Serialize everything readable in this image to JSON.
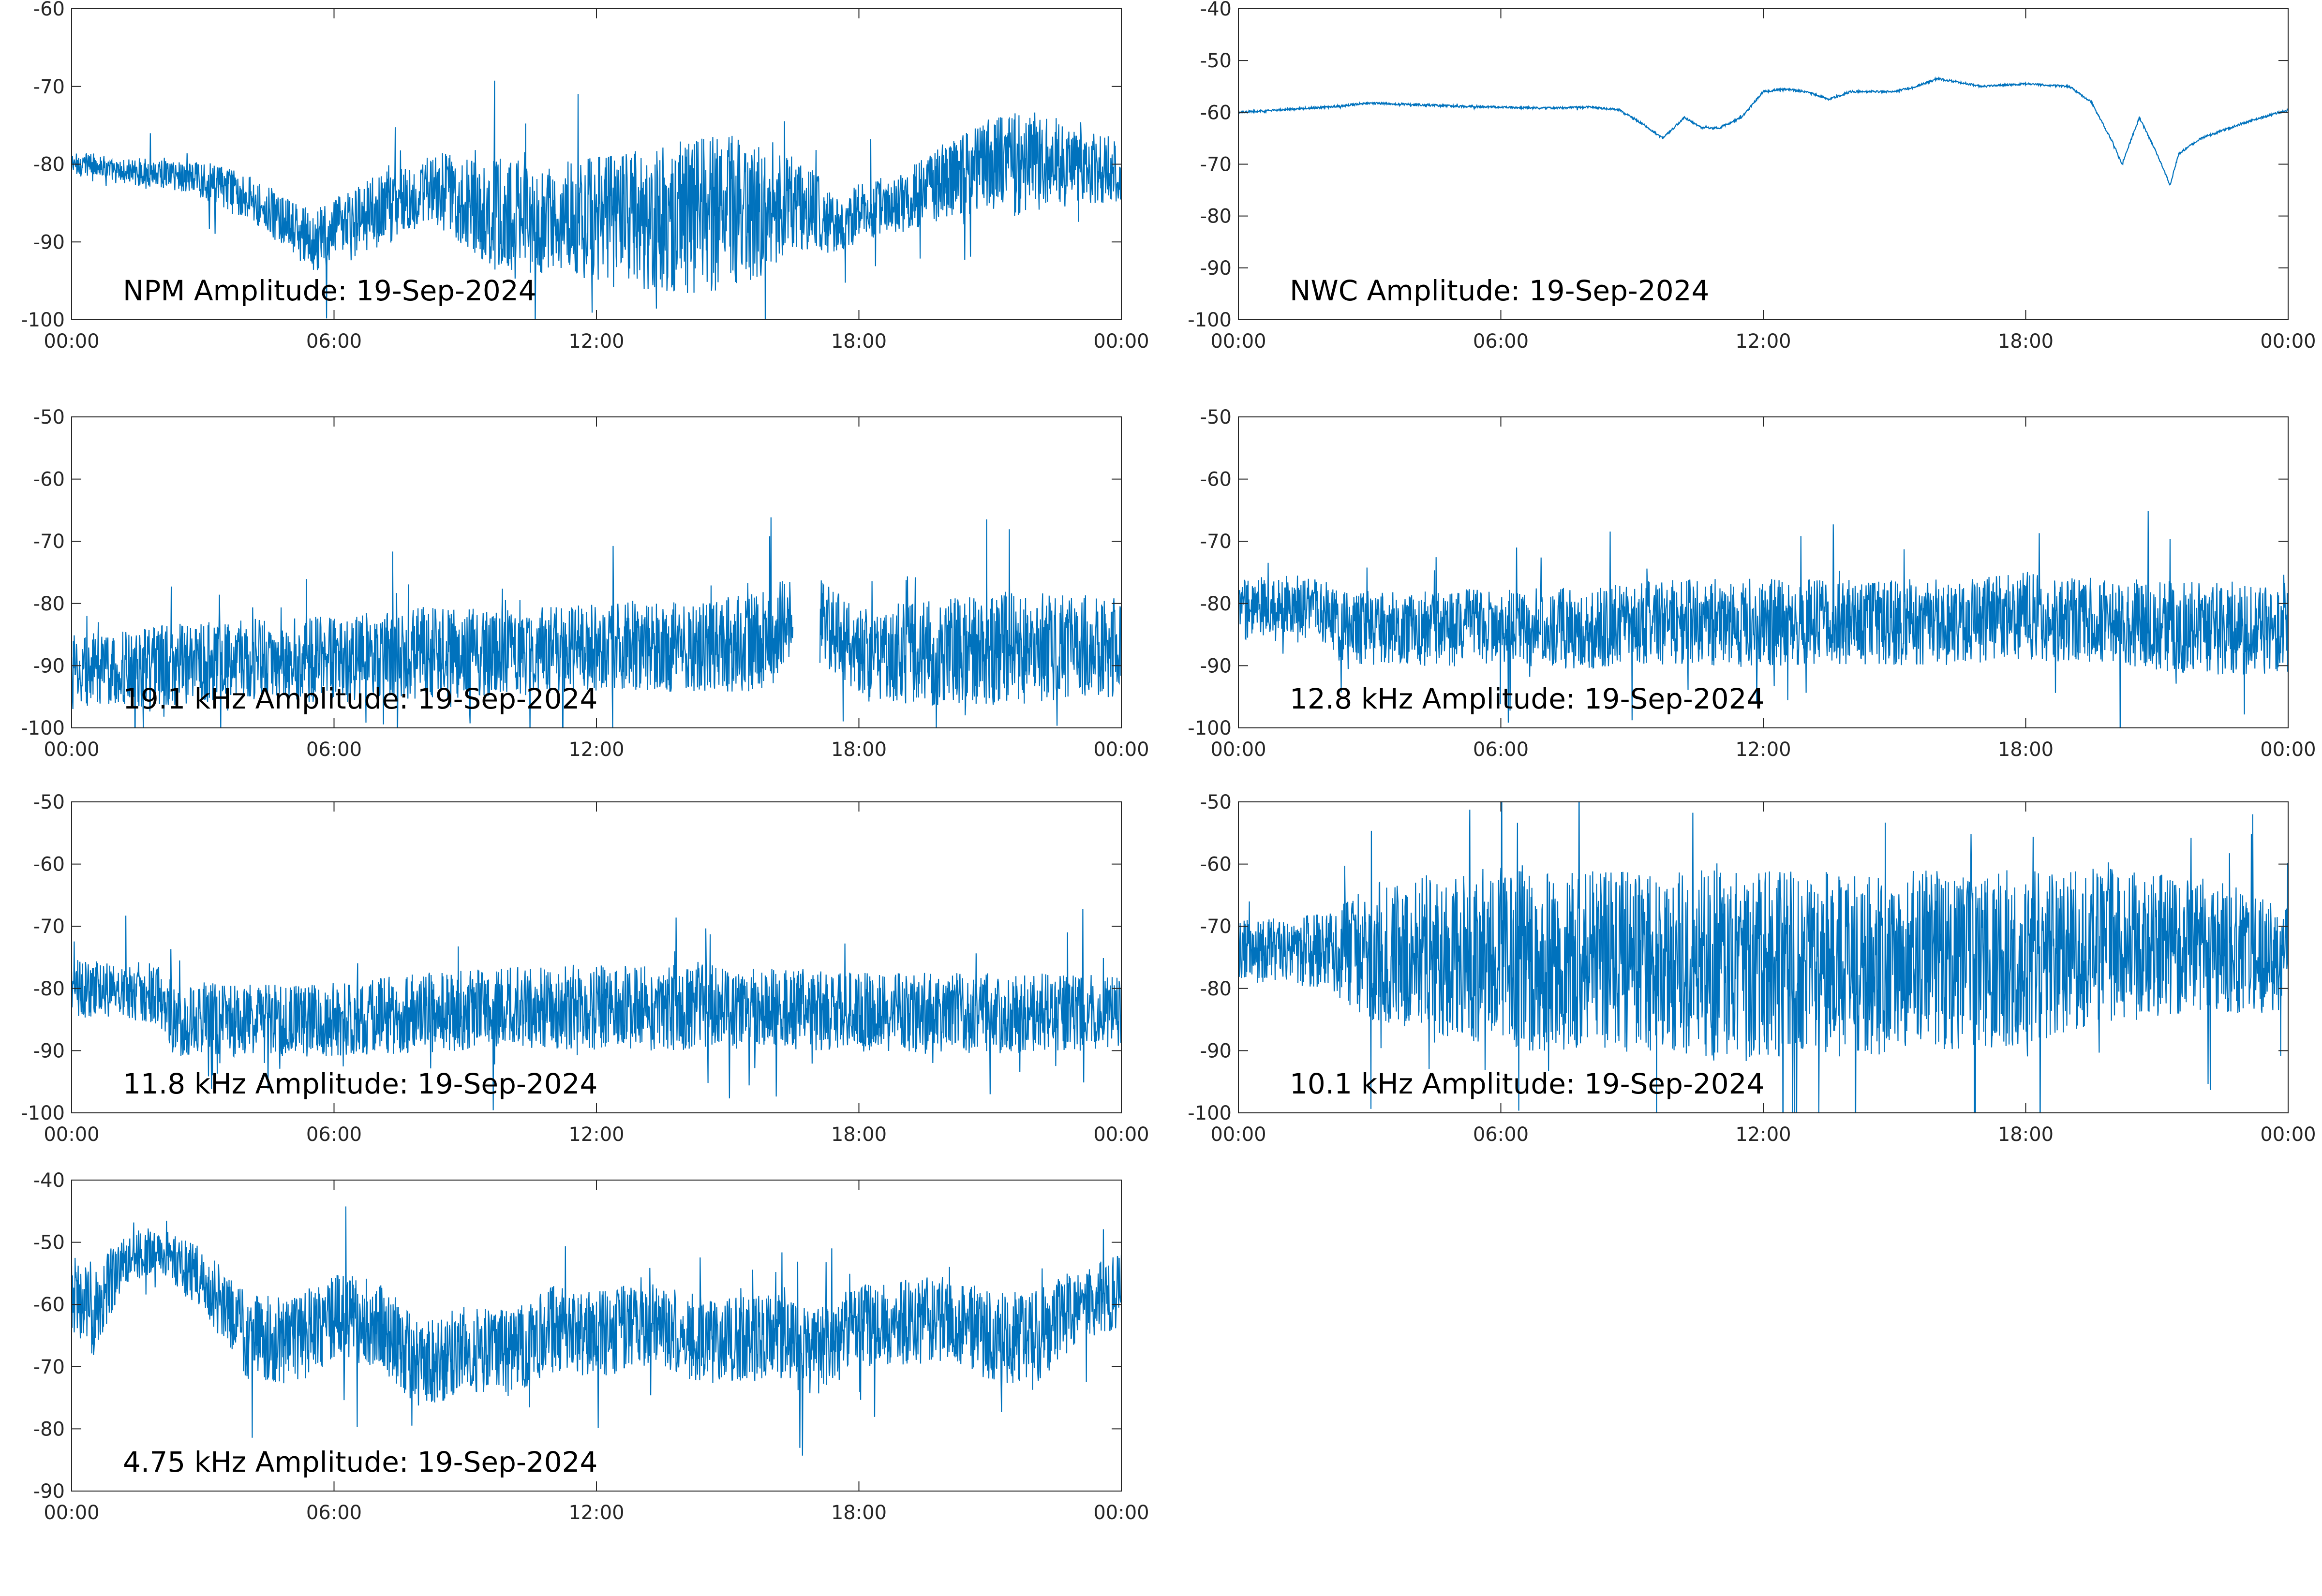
{
  "figure": {
    "background": "#ffffff",
    "line_color": "#0072BD",
    "axis_color": "#262626"
  },
  "chart_data": [
    {
      "type": "line",
      "title": "NPM Amplitude: 19-Sep-2024",
      "xlabel": "",
      "ylabel": "",
      "x_ticks": [
        "00:00",
        "06:00",
        "12:00",
        "18:00",
        "00:00"
      ],
      "xlim": [
        0,
        24
      ],
      "ylim": [
        -100,
        -60
      ],
      "y_ticks": [
        -60,
        -70,
        -80,
        -90,
        -100
      ],
      "grid": false,
      "series": [
        {
          "x": [
            0,
            0.6,
            1,
            2,
            3,
            4,
            5,
            5.5,
            6,
            7,
            8,
            8.5,
            9,
            10,
            11,
            12,
            13,
            14,
            15,
            16,
            16.5,
            17,
            17.5,
            18,
            19,
            20,
            21,
            22,
            23,
            24
          ],
          "y": [
            -80,
            -80,
            -81,
            -81,
            -82,
            -84,
            -88,
            -90,
            -89,
            -86,
            -84,
            -83,
            -85,
            -87,
            -87,
            -87,
            -87,
            -87,
            -86,
            -86,
            -85,
            -86,
            -88,
            -86,
            -85,
            -82,
            -80,
            -80,
            -80,
            -81
          ],
          "spread": [
            3,
            3,
            3,
            4,
            5,
            6,
            7,
            8,
            9,
            10,
            8,
            9,
            12,
            16,
            14,
            16,
            18,
            20,
            20,
            16,
            12,
            10,
            8,
            8,
            8,
            10,
            12,
            14,
            10,
            8
          ]
        }
      ]
    },
    {
      "type": "line",
      "title": "NWC Amplitude: 19-Sep-2024",
      "xlabel": "",
      "ylabel": "",
      "x_ticks": [
        "00:00",
        "06:00",
        "12:00",
        "18:00",
        "00:00"
      ],
      "xlim": [
        0,
        24
      ],
      "ylim": [
        -100,
        -40
      ],
      "y_ticks": [
        -40,
        -50,
        -60,
        -70,
        -80,
        -90,
        -100
      ],
      "grid": false,
      "series": [
        {
          "x": [
            0,
            1,
            2,
            3,
            4,
            5,
            6,
            7,
            8,
            8.7,
            9.2,
            9.7,
            10.2,
            10.6,
            11,
            11.5,
            12,
            12.5,
            13,
            13.5,
            14,
            15,
            15.5,
            16,
            17,
            18,
            19,
            19.5,
            20,
            20.2,
            20.6,
            21,
            21.3,
            21.5,
            22,
            23,
            24
          ],
          "y": [
            -60,
            -59.5,
            -59,
            -58.2,
            -58.5,
            -58.8,
            -59,
            -59.2,
            -59,
            -59.5,
            -62,
            -65,
            -61,
            -63,
            -63,
            -61,
            -56,
            -55.5,
            -56,
            -57.5,
            -56,
            -56,
            -55,
            -53.5,
            -55,
            -54.5,
            -55,
            -58,
            -66,
            -70,
            -61,
            -68,
            -74,
            -68,
            -65,
            -62,
            -59.5
          ],
          "spread": [
            0.4
          ]
        }
      ]
    },
    {
      "type": "line",
      "title": "19.1 kHz Amplitude: 19-Sep-2024",
      "xlabel": "",
      "ylabel": "",
      "x_ticks": [
        "00:00",
        "06:00",
        "12:00",
        "18:00",
        "00:00"
      ],
      "xlim": [
        0,
        24
      ],
      "ylim": [
        -100,
        -50
      ],
      "y_ticks": [
        -50,
        -60,
        -70,
        -80,
        -90,
        -100
      ],
      "grid": false,
      "series": [
        {
          "x": [
            0,
            2,
            4,
            6,
            8,
            10,
            12,
            14,
            16,
            16.3,
            17,
            17.3,
            18,
            20,
            22,
            24
          ],
          "y": [
            -91,
            -90,
            -89,
            -89,
            -88,
            -88,
            -87,
            -87,
            -86,
            -82,
            -82,
            -84,
            -88,
            -88,
            -87,
            -87
          ],
          "spread": [
            12,
            13,
            13,
            14,
            15,
            14,
            14,
            15,
            16,
            14,
            14,
            14,
            14,
            18,
            18,
            16
          ],
          "gap": [
            16.5,
            17.1,
            -87
          ]
        }
      ]
    },
    {
      "type": "line",
      "title": "12.8 kHz Amplitude: 19-Sep-2024",
      "xlabel": "",
      "ylabel": "",
      "x_ticks": [
        "00:00",
        "06:00",
        "12:00",
        "18:00",
        "00:00"
      ],
      "xlim": [
        0,
        24
      ],
      "ylim": [
        -100,
        -50
      ],
      "y_ticks": [
        -50,
        -60,
        -70,
        -80,
        -90,
        -100
      ],
      "grid": false,
      "series": [
        {
          "x": [
            0,
            1,
            2,
            2.3,
            4,
            6,
            8,
            10,
            12,
            14,
            16,
            18,
            20,
            22,
            24
          ],
          "y": [
            -81,
            -80,
            -81,
            -84,
            -84,
            -84,
            -84,
            -83,
            -83,
            -83,
            -83,
            -82,
            -83,
            -84,
            -84
          ],
          "spread": [
            10,
            9,
            11,
            12,
            12,
            13,
            13,
            14,
            14,
            14,
            14,
            14,
            14,
            15,
            15
          ]
        }
      ]
    },
    {
      "type": "line",
      "title": "11.8 kHz Amplitude: 19-Sep-2024",
      "xlabel": "",
      "ylabel": "",
      "x_ticks": [
        "00:00",
        "06:00",
        "12:00",
        "18:00",
        "00:00"
      ],
      "xlim": [
        0,
        24
      ],
      "ylim": [
        -100,
        -50
      ],
      "y_ticks": [
        -50,
        -60,
        -70,
        -80,
        -90,
        -100
      ],
      "grid": false,
      "series": [
        {
          "x": [
            0,
            1,
            2,
            2.3,
            4,
            6,
            8,
            10,
            12,
            14,
            16,
            18,
            20,
            22,
            24
          ],
          "y": [
            -80,
            -80,
            -81,
            -85,
            -85,
            -85,
            -84,
            -83,
            -83,
            -83,
            -83,
            -84,
            -84,
            -84,
            -84
          ],
          "spread": [
            10,
            9,
            10,
            12,
            12,
            12,
            13,
            13,
            14,
            14,
            13,
            13,
            13,
            13,
            12
          ]
        }
      ]
    },
    {
      "type": "line",
      "title": "10.1 kHz Amplitude: 19-Sep-2024",
      "xlabel": "",
      "ylabel": "",
      "x_ticks": [
        "00:00",
        "06:00",
        "12:00",
        "18:00",
        "00:00"
      ],
      "xlim": [
        0,
        24
      ],
      "ylim": [
        -100,
        -50
      ],
      "y_ticks": [
        -50,
        -60,
        -70,
        -80,
        -90,
        -100
      ],
      "grid": false,
      "series": [
        {
          "x": [
            0,
            2,
            3,
            6,
            9,
            12,
            15,
            18,
            20,
            22,
            24
          ],
          "y": [
            -74,
            -74,
            -74,
            -75,
            -76,
            -76,
            -76,
            -75,
            -73,
            -73,
            -75
          ],
          "spread": [
            10,
            12,
            22,
            30,
            30,
            30,
            30,
            28,
            25,
            22,
            18
          ]
        }
      ]
    },
    {
      "type": "line",
      "title": "4.75 kHz Amplitude: 19-Sep-2024",
      "xlabel": "",
      "ylabel": "",
      "x_ticks": [
        "00:00",
        "06:00",
        "12:00",
        "18:00",
        "00:00"
      ],
      "xlim": [
        0,
        24
      ],
      "ylim": [
        -90,
        -40
      ],
      "y_ticks": [
        -40,
        -50,
        -60,
        -70,
        -80,
        -90
      ],
      "grid": false,
      "series": [
        {
          "x": [
            0,
            0.5,
            1,
            1.5,
            2,
            3,
            4,
            5,
            6,
            7,
            8,
            9,
            10,
            11,
            12,
            13,
            14,
            15,
            16,
            17,
            18,
            19,
            20,
            21,
            22,
            23,
            24
          ],
          "y": [
            -58,
            -62,
            -55,
            -52,
            -51,
            -56,
            -65,
            -66,
            -62,
            -63,
            -70,
            -67,
            -68,
            -64,
            -65,
            -63,
            -65,
            -66,
            -65,
            -68,
            -63,
            -63,
            -62,
            -65,
            -66,
            -60,
            -58
          ],
          "spread": [
            12,
            14,
            10,
            8,
            7,
            10,
            14,
            14,
            14,
            14,
            14,
            14,
            14,
            14,
            14,
            14,
            14,
            14,
            14,
            14,
            14,
            14,
            14,
            14,
            16,
            12,
            12
          ]
        }
      ]
    }
  ]
}
